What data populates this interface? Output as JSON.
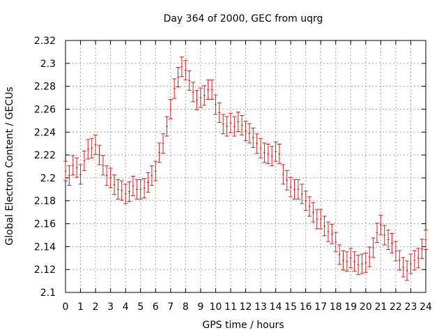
{
  "chart_data": {
    "type": "scatter",
    "title": "Day 364 of 2000, GEC from uqrg",
    "xlabel": "GPS time / hours",
    "ylabel": "Global Electron Content / GECUs",
    "xlim": [
      0,
      24
    ],
    "ylim": [
      2.1,
      2.32
    ],
    "x_ticks": [
      0,
      1,
      2,
      3,
      4,
      5,
      6,
      7,
      8,
      9,
      10,
      11,
      12,
      13,
      14,
      15,
      16,
      17,
      18,
      19,
      20,
      21,
      22,
      23,
      24
    ],
    "y_ticks": [
      2.1,
      2.12,
      2.14,
      2.16,
      2.18,
      2.2,
      2.22,
      2.24,
      2.26,
      2.28,
      2.3,
      2.32
    ],
    "y_tick_labels": [
      "2.1",
      "2.12",
      "2.14",
      "2.16",
      "2.18",
      "2.2",
      "2.22",
      "2.24",
      "2.26",
      "2.28",
      "2.3",
      "2.32"
    ],
    "grid": true,
    "error_bar_color": "#cc1f1f",
    "series": [
      {
        "x": [
          0.0,
          0.25,
          0.5,
          0.75,
          1.0,
          1.25,
          1.5,
          1.75,
          2.0,
          2.25,
          2.5,
          2.75,
          3.0,
          3.25,
          3.5,
          3.75,
          4.0,
          4.25,
          4.5,
          4.75,
          5.0,
          5.25,
          5.5,
          5.75,
          6.0,
          6.25,
          6.5,
          6.75,
          7.0,
          7.25,
          7.5,
          7.75,
          8.0,
          8.25,
          8.5,
          8.75,
          9.0,
          9.25,
          9.5,
          9.75,
          10.0,
          10.25,
          10.5,
          10.75,
          11.0,
          11.25,
          11.5,
          11.75,
          12.0,
          12.25,
          12.5,
          12.75,
          13.0,
          13.25,
          13.5,
          13.75,
          14.0,
          14.25,
          14.5,
          14.75,
          15.0,
          15.25,
          15.5,
          15.75,
          16.0,
          16.25,
          16.5,
          16.75,
          17.0,
          17.25,
          17.5,
          17.75,
          18.0,
          18.25,
          18.5,
          18.75,
          19.0,
          19.25,
          19.5,
          19.75,
          20.0,
          20.25,
          20.5,
          20.75,
          21.0,
          21.25,
          21.5,
          21.75,
          22.0,
          22.25,
          22.5,
          22.75,
          23.0,
          23.25,
          23.5,
          23.75,
          24.0
        ],
        "y": [
          2.206,
          2.202,
          2.211,
          2.209,
          2.203,
          2.215,
          2.225,
          2.226,
          2.229,
          2.22,
          2.211,
          2.202,
          2.2,
          2.194,
          2.19,
          2.189,
          2.186,
          2.188,
          2.193,
          2.19,
          2.19,
          2.191,
          2.196,
          2.202,
          2.206,
          2.222,
          2.23,
          2.245,
          2.26,
          2.278,
          2.288,
          2.297,
          2.294,
          2.285,
          2.275,
          2.268,
          2.27,
          2.272,
          2.277,
          2.277,
          2.264,
          2.257,
          2.247,
          2.245,
          2.248,
          2.245,
          2.249,
          2.246,
          2.241,
          2.239,
          2.235,
          2.23,
          2.226,
          2.222,
          2.221,
          2.219,
          2.223,
          2.221,
          2.203,
          2.198,
          2.192,
          2.19,
          2.19,
          2.186,
          2.18,
          2.175,
          2.17,
          2.164,
          2.164,
          2.158,
          2.153,
          2.151,
          2.144,
          2.133,
          2.128,
          2.127,
          2.13,
          2.127,
          2.124,
          2.125,
          2.126,
          2.131,
          2.139,
          2.152,
          2.159,
          2.15,
          2.146,
          2.143,
          2.136,
          2.128,
          2.122,
          2.119,
          2.125,
          2.128,
          2.13,
          2.138,
          2.146
        ],
        "err": 0.0085
      }
    ]
  }
}
